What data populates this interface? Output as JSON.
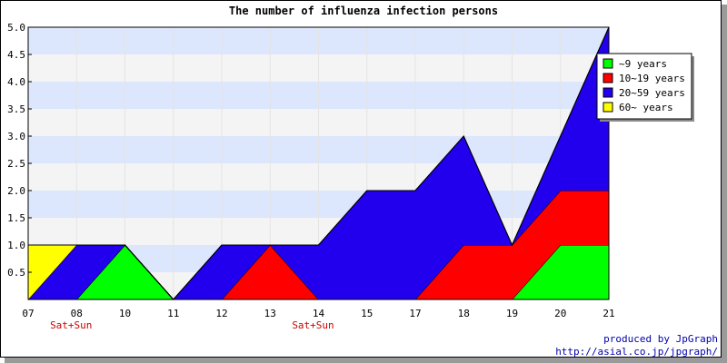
{
  "chart_data": {
    "type": "area",
    "title": "The number of influenza infection persons",
    "x": [
      "07",
      "08",
      "10",
      "11",
      "12",
      "13",
      "14",
      "15",
      "17",
      "18",
      "19",
      "20",
      "21"
    ],
    "weekend_markers": [
      {
        "x": "08",
        "label": "Sat+Sun"
      },
      {
        "x": "14",
        "label": "Sat+Sun"
      }
    ],
    "series": [
      {
        "name": "~9 years",
        "color": "#00ff00",
        "values": [
          0,
          0,
          1,
          0,
          0,
          0,
          0,
          0,
          0,
          0,
          0,
          1,
          1
        ]
      },
      {
        "name": "10~19 years",
        "color": "#ff0000",
        "values": [
          0,
          0,
          0,
          0,
          0,
          1,
          0,
          0,
          0,
          1,
          1,
          1,
          1
        ]
      },
      {
        "name": "20~59 years",
        "color": "#2200ee",
        "values": [
          0,
          1,
          0,
          0,
          1,
          0,
          1,
          2,
          2,
          2,
          0,
          1,
          3
        ]
      },
      {
        "name": "60~ years",
        "color": "#ffff00",
        "values": [
          1,
          0,
          0,
          0,
          0,
          0,
          0,
          0,
          0,
          0,
          0,
          0,
          0
        ]
      }
    ],
    "ylim": [
      0,
      5
    ],
    "yticks": [
      "0.5",
      "1.0",
      "1.5",
      "2.0",
      "2.5",
      "3.0",
      "3.5",
      "4.0",
      "4.5",
      "5.0"
    ],
    "stacked": true,
    "legend_position": "top-right",
    "grid": true
  },
  "credits": {
    "line1": "produced by JpGraph",
    "line2": "http://asial.co.jp/jpgraph/"
  }
}
